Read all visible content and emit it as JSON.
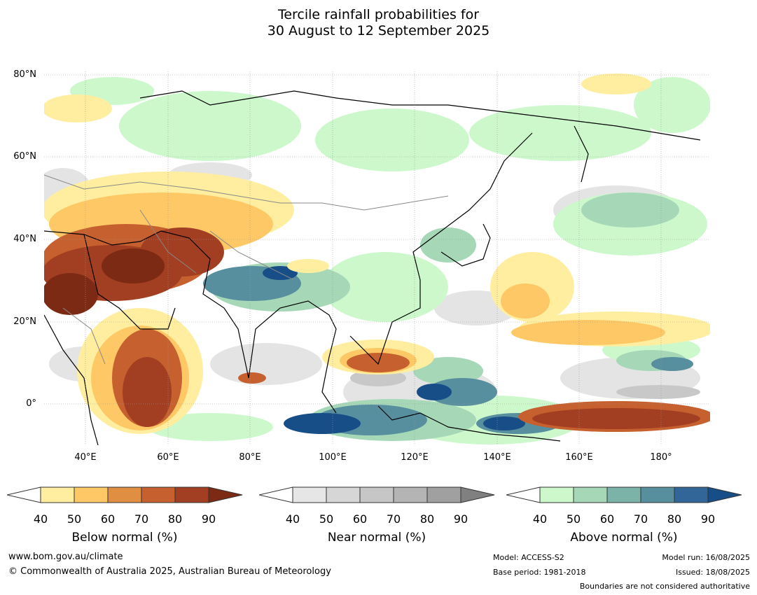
{
  "title_line1": "Tercile rainfall probabilities for",
  "title_line2": "30 August to 12 September 2025",
  "map": {
    "lat_labels": [
      "80°N",
      "60°N",
      "40°N",
      "20°N",
      "0°"
    ],
    "lon_labels": [
      "40°E",
      "60°E",
      "80°E",
      "100°E",
      "120°E",
      "140°E",
      "160°E",
      "180°"
    ],
    "extent": {
      "lon_min": 30,
      "lon_max": 192,
      "lat_min": -10,
      "lat_max": 81
    }
  },
  "colorbars": [
    {
      "title": "Below normal (%)",
      "ticks": [
        "40",
        "50",
        "60",
        "70",
        "80",
        "90"
      ],
      "colors": [
        "#ffeea0",
        "#fdc865",
        "#e08f42",
        "#c6602f",
        "#a23f22",
        "#7d2a14"
      ]
    },
    {
      "title": "Near normal (%)",
      "ticks": [
        "40",
        "50",
        "60",
        "70",
        "80",
        "90"
      ],
      "colors": [
        "#e6e6e6",
        "#d6d6d6",
        "#c6c6c6",
        "#b4b4b4",
        "#a0a0a0",
        "#808080"
      ]
    },
    {
      "title": "Above normal (%)",
      "ticks": [
        "40",
        "50",
        "60",
        "70",
        "80",
        "90"
      ],
      "colors": [
        "#ccf8cc",
        "#a6d8b8",
        "#7bb3a8",
        "#578f9e",
        "#336698",
        "#174e88"
      ]
    }
  ],
  "footer": {
    "website": "www.bom.gov.au/climate",
    "copyright": "© Commonwealth of Australia 2025, Australian Bureau of Meteorology",
    "model": "Model: ACCESS-S2",
    "base_period": "Base period: 1981-2018",
    "model_run": "Model run: 16/08/2025",
    "issued": "Issued: 18/08/2025",
    "disclaimer": "Boundaries are not considered authoritative"
  }
}
